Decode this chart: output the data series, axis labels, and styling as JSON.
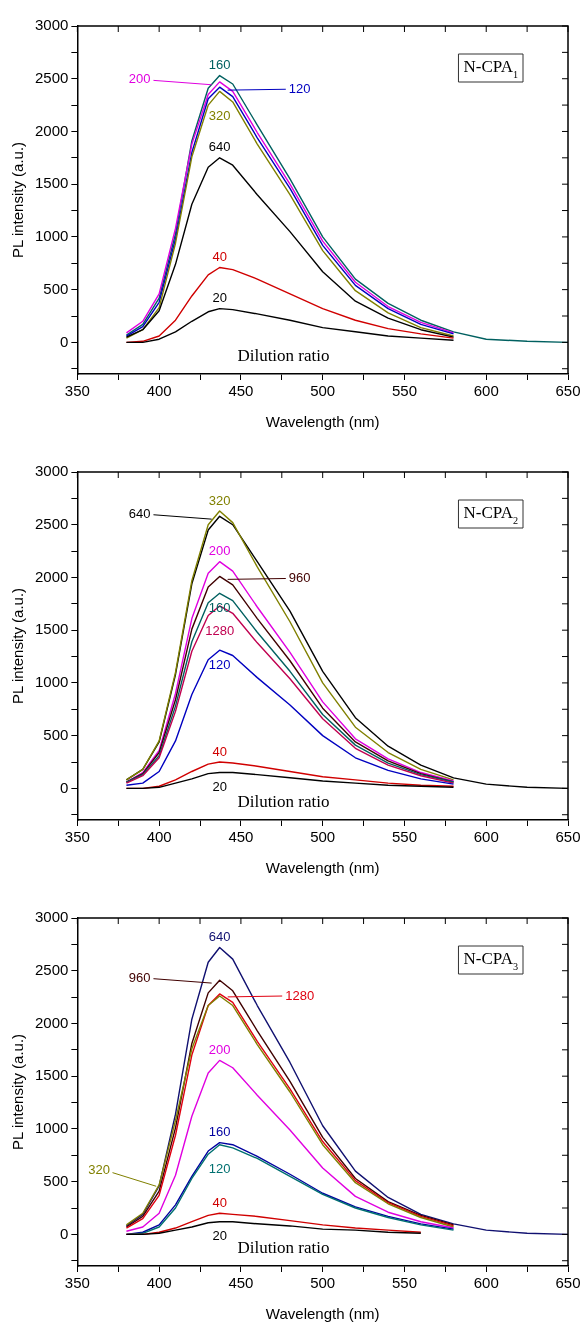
{
  "chart_data": [
    {
      "type": "line",
      "title": "N-CPA$_{1}$",
      "xlabel": "Wavelength (nm)",
      "ylabel": "PL intensity (a.u.)",
      "x": [
        380,
        390,
        400,
        410,
        420,
        430,
        437,
        445,
        460,
        480,
        500,
        520,
        540,
        560,
        580,
        600,
        625,
        650
      ],
      "xlim": [
        350,
        650
      ],
      "xticks": [
        350,
        {
          "value": 375,
          "label": null
        },
        400,
        {
          "value": 425,
          "label": null
        },
        450,
        {
          "value": 475,
          "label": null
        },
        500,
        {
          "value": 525,
          "label": null
        },
        550,
        {
          "value": 575,
          "label": null
        },
        600,
        {
          "value": 625,
          "label": null
        },
        650
      ],
      "ylim": [
        -300,
        3000
      ],
      "yticks": [
        {
          "value": -250,
          "label": null
        },
        0,
        {
          "value": 250,
          "label": null
        },
        500,
        {
          "value": 750,
          "label": null
        },
        1000,
        {
          "value": 1250,
          "label": null
        },
        1500,
        {
          "value": 1750,
          "label": null
        },
        2000,
        {
          "value": 2250,
          "label": null
        },
        2500,
        {
          "value": 2750,
          "label": null
        },
        3000
      ],
      "series": [
        {
          "name": "20",
          "color": "#000000",
          "values": [
            0,
            0,
            30,
            100,
            200,
            290,
            320,
            310,
            270,
            210,
            140,
            100,
            60,
            40,
            20,
            null,
            null,
            null
          ]
        },
        {
          "name": "40",
          "color": "#d00000",
          "values": [
            0,
            10,
            60,
            210,
            440,
            640,
            710,
            690,
            600,
            460,
            320,
            210,
            130,
            80,
            40,
            null,
            null,
            null
          ]
        },
        {
          "name": "640",
          "color": "#000000",
          "values": [
            50,
            120,
            300,
            740,
            1310,
            1660,
            1750,
            1680,
            1400,
            1050,
            670,
            390,
            230,
            120,
            50,
            null,
            null,
            null
          ]
        },
        {
          "name": "320",
          "color": "#808000",
          "values": [
            40,
            120,
            330,
            940,
            1760,
            2250,
            2380,
            2280,
            1880,
            1400,
            870,
            490,
            280,
            140,
            60,
            null,
            null,
            null
          ]
        },
        {
          "name": "120",
          "color": "#0000c0",
          "values": [
            60,
            150,
            380,
            980,
            1800,
            2310,
            2420,
            2330,
            1940,
            1460,
            920,
            540,
            320,
            170,
            80,
            null,
            null,
            null
          ]
        },
        {
          "name": "200",
          "color": "#e000e0",
          "values": [
            90,
            200,
            460,
            1080,
            1880,
            2350,
            2470,
            2380,
            1990,
            1500,
            960,
            570,
            340,
            190,
            90,
            null,
            null,
            null
          ]
        },
        {
          "name": "160",
          "color": "#006060",
          "values": [
            70,
            170,
            420,
            1030,
            1910,
            2410,
            2530,
            2450,
            2060,
            1550,
            1000,
            600,
            370,
            210,
            100,
            30,
            10,
            0
          ]
        }
      ],
      "annotations": [
        "Dilution ratio"
      ]
    },
    {
      "type": "line",
      "title": "N-CPA$_{2}$",
      "xlabel": "Wavelength (nm)",
      "ylabel": "PL intensity (a.u.)",
      "x": [
        380,
        390,
        400,
        410,
        420,
        430,
        437,
        445,
        460,
        480,
        500,
        520,
        540,
        560,
        580,
        600,
        625,
        650
      ],
      "xlim": [
        350,
        650
      ],
      "xticks": [
        350,
        {
          "value": 375,
          "label": null
        },
        400,
        {
          "value": 425,
          "label": null
        },
        450,
        {
          "value": 475,
          "label": null
        },
        500,
        {
          "value": 525,
          "label": null
        },
        550,
        {
          "value": 575,
          "label": null
        },
        600,
        {
          "value": 625,
          "label": null
        },
        650
      ],
      "ylim": [
        -300,
        3000
      ],
      "yticks": [
        {
          "value": -250,
          "label": null
        },
        0,
        {
          "value": 250,
          "label": null
        },
        500,
        {
          "value": 750,
          "label": null
        },
        1000,
        {
          "value": 1250,
          "label": null
        },
        1500,
        {
          "value": 1750,
          "label": null
        },
        2000,
        {
          "value": 2250,
          "label": null
        },
        2500,
        {
          "value": 2750,
          "label": null
        },
        3000
      ],
      "series": [
        {
          "name": "20",
          "color": "#000000",
          "values": [
            0,
            0,
            10,
            50,
            90,
            140,
            150,
            150,
            130,
            100,
            70,
            50,
            30,
            20,
            10,
            null,
            null,
            null
          ]
        },
        {
          "name": "40",
          "color": "#d00000",
          "values": [
            0,
            0,
            20,
            80,
            160,
            230,
            250,
            240,
            210,
            160,
            110,
            80,
            50,
            30,
            20,
            null,
            null,
            null
          ]
        },
        {
          "name": "120",
          "color": "#0000c0",
          "values": [
            30,
            50,
            160,
            450,
            890,
            1220,
            1310,
            1260,
            1050,
            790,
            500,
            290,
            170,
            90,
            40,
            null,
            null,
            null
          ]
        },
        {
          "name": "1280",
          "color": "#c00050",
          "values": [
            50,
            120,
            290,
            730,
            1300,
            1640,
            1730,
            1660,
            1380,
            1040,
            660,
            380,
            220,
            120,
            50,
            null,
            null,
            null
          ]
        },
        {
          "name": "160",
          "color": "#006060",
          "values": [
            60,
            130,
            310,
            780,
            1390,
            1760,
            1850,
            1780,
            1480,
            1110,
            700,
            410,
            240,
            130,
            60,
            null,
            null,
            null
          ]
        },
        {
          "name": "960",
          "color": "#400000",
          "values": [
            60,
            140,
            340,
            840,
            1510,
            1910,
            2010,
            1930,
            1610,
            1210,
            760,
            440,
            260,
            140,
            60,
            null,
            null,
            null
          ]
        },
        {
          "name": "200",
          "color": "#e000e0",
          "values": [
            60,
            150,
            360,
            900,
            1610,
            2040,
            2150,
            2060,
            1720,
            1290,
            820,
            470,
            280,
            150,
            70,
            null,
            null,
            null
          ]
        },
        {
          "name": "320",
          "color": "#808000",
          "values": [
            80,
            180,
            450,
            1100,
            1970,
            2500,
            2630,
            2520,
            2100,
            1580,
            1000,
            580,
            340,
            180,
            80,
            null,
            null,
            null
          ]
        },
        {
          "name": "640",
          "color": "#000000",
          "values": [
            80,
            180,
            440,
            1080,
            1940,
            2450,
            2580,
            2500,
            2150,
            1680,
            1110,
            670,
            400,
            220,
            100,
            40,
            10,
            0
          ]
        }
      ],
      "annotations": [
        "Dilution ratio"
      ]
    },
    {
      "type": "line",
      "title": "N-CPA$_{3}$",
      "xlabel": "Wavelength (nm)",
      "ylabel": "PL intensity (a.u.)",
      "x": [
        380,
        390,
        400,
        410,
        420,
        430,
        437,
        445,
        460,
        480,
        500,
        520,
        540,
        560,
        580,
        600,
        625,
        650
      ],
      "xlim": [
        350,
        650
      ],
      "xticks": [
        350,
        {
          "value": 375,
          "label": null
        },
        400,
        {
          "value": 425,
          "label": null
        },
        450,
        {
          "value": 475,
          "label": null
        },
        500,
        {
          "value": 525,
          "label": null
        },
        550,
        {
          "value": 575,
          "label": null
        },
        600,
        {
          "value": 625,
          "label": null
        },
        650
      ],
      "ylim": [
        -300,
        3000
      ],
      "yticks": [
        {
          "value": -250,
          "label": null
        },
        0,
        {
          "value": 250,
          "label": null
        },
        500,
        {
          "value": 750,
          "label": null
        },
        1000,
        {
          "value": 1250,
          "label": null
        },
        1500,
        {
          "value": 1750,
          "label": null
        },
        2000,
        {
          "value": 2250,
          "label": null
        },
        2500,
        {
          "value": 2750,
          "label": null
        },
        3000
      ],
      "series": [
        {
          "name": "20",
          "color": "#000000",
          "values": [
            0,
            0,
            10,
            40,
            70,
            110,
            120,
            120,
            100,
            80,
            50,
            40,
            20,
            10,
            null,
            null,
            null,
            null
          ]
        },
        {
          "name": "40",
          "color": "#d00000",
          "values": [
            0,
            0,
            20,
            60,
            120,
            180,
            200,
            190,
            170,
            130,
            90,
            60,
            40,
            20,
            null,
            null,
            null,
            null
          ]
        },
        {
          "name": "120",
          "color": "#007070",
          "values": [
            0,
            10,
            70,
            250,
            530,
            760,
            850,
            820,
            720,
            550,
            380,
            250,
            160,
            90,
            40,
            null,
            null,
            null
          ]
        },
        {
          "name": "160",
          "color": "#0000a0",
          "values": [
            0,
            20,
            90,
            280,
            550,
            790,
            870,
            850,
            740,
            570,
            390,
            260,
            170,
            100,
            50,
            null,
            null,
            null
          ]
        },
        {
          "name": "200",
          "color": "#e000e0",
          "values": [
            30,
            70,
            200,
            560,
            1120,
            1530,
            1650,
            1580,
            1320,
            990,
            630,
            360,
            210,
            120,
            60,
            null,
            null,
            null
          ]
        },
        {
          "name": "320",
          "color": "#808000",
          "values": [
            90,
            200,
            470,
            1080,
            1760,
            2170,
            2260,
            2170,
            1800,
            1350,
            850,
            490,
            290,
            160,
            70,
            null,
            null,
            null
          ]
        },
        {
          "name": "1280",
          "color": "#e00010",
          "values": [
            60,
            150,
            370,
            940,
            1700,
            2170,
            2280,
            2200,
            1830,
            1380,
            880,
            510,
            300,
            170,
            80,
            null,
            null,
            null
          ]
        },
        {
          "name": "960",
          "color": "#400000",
          "values": [
            70,
            170,
            410,
            1010,
            1810,
            2290,
            2410,
            2310,
            1930,
            1450,
            920,
            530,
            310,
            180,
            90,
            null,
            null,
            null
          ]
        },
        {
          "name": "640",
          "color": "#101070",
          "values": [
            80,
            190,
            460,
            1140,
            2040,
            2580,
            2720,
            2610,
            2170,
            1630,
            1030,
            600,
            350,
            190,
            100,
            40,
            10,
            0
          ]
        }
      ],
      "annotations": [
        "Dilution ratio"
      ]
    }
  ]
}
